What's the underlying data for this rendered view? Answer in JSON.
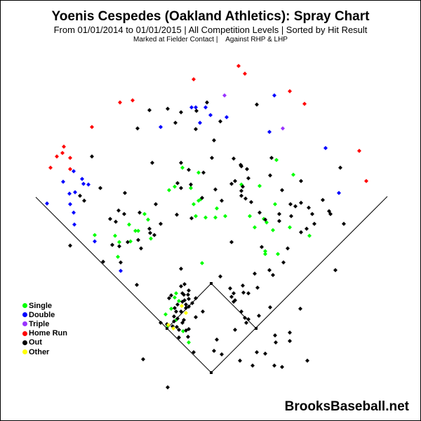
{
  "header": {
    "title": "Yoenis Cespedes (Oakland Athletics): Spray Chart",
    "subtitle": "From 01/01/2014 to 01/01/2015 | All Competition Levels | Sorted by Hit Result",
    "filter_contact": "Marked at Fielder Contact |",
    "filter_hand": "Against RHP & LHP"
  },
  "watermark": "BrooksBaseball.net",
  "chart_data": {
    "type": "scatter",
    "title": "Yoenis Cespedes (Oakland Athletics): Spray Chart",
    "grid": false,
    "legend_placement": "bottom-left",
    "series": [
      {
        "name": "Single",
        "color": "#00ff00",
        "points": [
          [
            -41,
            292
          ],
          [
            -18,
            285
          ],
          [
            -60,
            260
          ],
          [
            -52,
            265
          ],
          [
            -29,
            263
          ],
          [
            -25,
            240
          ],
          [
            -18,
            245
          ],
          [
            -15,
            247
          ],
          [
            -95,
            226
          ],
          [
            -22,
            223
          ],
          [
            -8,
            221
          ],
          [
            93,
            303
          ],
          [
            117,
            282
          ],
          [
            43,
            268
          ],
          [
            69,
            266
          ],
          [
            91,
            240
          ],
          [
            8,
            234
          ],
          [
            20,
            223
          ],
          [
            55,
            223
          ],
          [
            6,
            221
          ],
          [
            -90,
            218
          ],
          [
            -117,
            211
          ],
          [
            -108,
            202
          ],
          [
            -104,
            202
          ],
          [
            -166,
            196
          ],
          [
            -137,
            195
          ],
          [
            -131,
            186
          ],
          [
            -115,
            187
          ],
          [
            -86,
            191
          ],
          [
            -133,
            165
          ],
          [
            -13,
            156
          ],
          [
            -50,
            113
          ],
          [
            -52,
            107
          ],
          [
            -46,
            102
          ],
          [
            -57,
            91
          ],
          [
            -65,
            83
          ],
          [
            -50,
            75
          ],
          [
            -62,
            67
          ],
          [
            -40,
            59
          ],
          [
            -32,
            43
          ],
          [
            75,
            219
          ],
          [
            79,
            214
          ],
          [
            62,
            207
          ],
          [
            88,
            203
          ],
          [
            112,
            207
          ],
          [
            140,
            195
          ],
          [
            77,
            173
          ],
          [
            77,
            169
          ],
          [
            95,
            169
          ]
        ]
      },
      {
        "name": "Double",
        "color": "#0000ff",
        "points": [
          [
            -28,
            378
          ],
          [
            -22,
            378
          ],
          [
            -8,
            378
          ],
          [
            -1,
            367
          ],
          [
            -16,
            356
          ],
          [
            -72,
            350
          ],
          [
            -196,
            287
          ],
          [
            -184,
            276
          ],
          [
            -211,
            272
          ],
          [
            -182,
            269
          ],
          [
            -175,
            268
          ],
          [
            -202,
            255
          ],
          [
            -194,
            257
          ],
          [
            -234,
            241
          ],
          [
            -201,
            240
          ],
          [
            -196,
            228
          ],
          [
            -195,
            211
          ],
          [
            -166,
            187
          ],
          [
            -129,
            145
          ],
          [
            90,
            395
          ],
          [
            22,
            364
          ],
          [
            83,
            343
          ],
          [
            163,
            320
          ],
          [
            182,
            256
          ]
        ]
      },
      {
        "name": "Triple",
        "color": "#9933ff",
        "points": [
          [
            19,
            395
          ],
          [
            102,
            348
          ]
        ]
      },
      {
        "name": "Home Run",
        "color": "#ff0000",
        "points": [
          [
            -25,
            418
          ],
          [
            -130,
            385
          ],
          [
            -112,
            388
          ],
          [
            -170,
            350
          ],
          [
            -210,
            322
          ],
          [
            -212,
            313
          ],
          [
            -220,
            308
          ],
          [
            -201,
            306
          ],
          [
            -229,
            292
          ],
          [
            -201,
            290
          ],
          [
            39,
            437
          ],
          [
            48,
            426
          ],
          [
            112,
            401
          ],
          [
            133,
            383
          ],
          [
            211,
            316
          ],
          [
            221,
            273
          ]
        ]
      },
      {
        "name": "Out",
        "color": "#000000",
        "points": [
          [
            -6,
            385
          ],
          [
            -88,
            374
          ],
          [
            -62,
            376
          ],
          [
            -43,
            371
          ],
          [
            -21,
            373
          ],
          [
            -51,
            356
          ],
          [
            -22,
            347
          ],
          [
            -105,
            348
          ],
          [
            -170,
            308
          ],
          [
            -84,
            299
          ],
          [
            -43,
            299
          ],
          [
            -32,
            289
          ],
          [
            -11,
            285
          ],
          [
            -48,
            270
          ],
          [
            -29,
            268
          ],
          [
            -43,
            263
          ],
          [
            -158,
            263
          ],
          [
            -187,
            252
          ],
          [
            -181,
            245
          ],
          [
            -123,
            256
          ],
          [
            -79,
            240
          ],
          [
            -13,
            249
          ],
          [
            -132,
            231
          ],
          [
            -124,
            226
          ],
          [
            -102,
            228
          ],
          [
            -49,
            225
          ],
          [
            65,
            382
          ],
          [
            13,
            358
          ],
          [
            4,
            331
          ],
          [
            1,
            306
          ],
          [
            32,
            305
          ],
          [
            86,
            306
          ],
          [
            42,
            296
          ],
          [
            43,
            294
          ],
          [
            51,
            290
          ],
          [
            53,
            277
          ],
          [
            84,
            281
          ],
          [
            128,
            273
          ],
          [
            184,
            292
          ],
          [
            29,
            269
          ],
          [
            34,
            273
          ],
          [
            45,
            265
          ],
          [
            6,
            261
          ],
          [
            43,
            259
          ],
          [
            101,
            260
          ],
          [
            43,
            252
          ],
          [
            49,
            248
          ],
          [
            57,
            243
          ],
          [
            15,
            245
          ],
          [
            159,
            246
          ],
          [
            113,
            240
          ],
          [
            120,
            237
          ],
          [
            128,
            242
          ],
          [
            139,
            235
          ],
          [
            168,
            230
          ],
          [
            170,
            226
          ],
          [
            69,
            228
          ],
          [
            97,
            226
          ],
          [
            114,
            223
          ],
          [
            144,
            226
          ],
          [
            -144,
            219
          ],
          [
            -136,
            215
          ],
          [
            -72,
            212
          ],
          [
            -28,
            220
          ],
          [
            -88,
            205
          ],
          [
            -87,
            199
          ],
          [
            -81,
            196
          ],
          [
            -104,
            189
          ],
          [
            -119,
            186
          ],
          [
            -141,
            182
          ],
          [
            -131,
            180
          ],
          [
            -100,
            177
          ],
          [
            -201,
            181
          ],
          [
            -154,
            158
          ],
          [
            -129,
            157
          ],
          [
            -43,
            148
          ],
          [
            -106,
            125
          ],
          [
            -12,
            87
          ],
          [
            -22,
            79
          ],
          [
            -72,
            71
          ],
          [
            -25,
            29
          ],
          [
            -97,
            19
          ],
          [
            -62,
            -21
          ],
          [
            -43,
            123
          ],
          [
            -38,
            126
          ],
          [
            -32,
            117
          ],
          [
            -41,
            113
          ],
          [
            -39,
            111
          ],
          [
            -33,
            111
          ],
          [
            -57,
            110
          ],
          [
            -60,
            106
          ],
          [
            -32,
            105
          ],
          [
            -38,
            103
          ],
          [
            -41,
            101
          ],
          [
            -27,
            99
          ],
          [
            -22,
            106
          ],
          [
            -48,
            97
          ],
          [
            -36,
            97
          ],
          [
            -32,
            94
          ],
          [
            -52,
            92
          ],
          [
            -43,
            87
          ],
          [
            -50,
            87
          ],
          [
            -36,
            92
          ],
          [
            -53,
            80
          ],
          [
            -48,
            77
          ],
          [
            -53,
            73
          ],
          [
            -39,
            75
          ],
          [
            -41,
            71
          ],
          [
            -63,
            69
          ],
          [
            -55,
            66
          ],
          [
            -49,
            65
          ],
          [
            -46,
            61
          ],
          [
            -36,
            60
          ],
          [
            -32,
            62
          ],
          [
            -46,
            50
          ],
          [
            -33,
            51
          ],
          [
            77,
            218
          ],
          [
            97,
            216
          ],
          [
            147,
            212
          ],
          [
            136,
            205
          ],
          [
            128,
            200
          ],
          [
            189,
            212
          ],
          [
            29,
            186
          ],
          [
            72,
            179
          ],
          [
            109,
            177
          ],
          [
            103,
            157
          ],
          [
            83,
            146
          ],
          [
            88,
            139
          ],
          [
            62,
            141
          ],
          [
            13,
            137
          ],
          [
            177,
            146
          ],
          [
            27,
            120
          ],
          [
            45,
            124
          ],
          [
            66,
            121
          ],
          [
            32,
            113
          ],
          [
            46,
            114
          ],
          [
            53,
            113
          ],
          [
            29,
            108
          ],
          [
            34,
            103
          ],
          [
            32,
            101
          ],
          [
            84,
            93
          ],
          [
            127,
            91
          ],
          [
            43,
            87
          ],
          [
            48,
            78
          ],
          [
            53,
            76
          ],
          [
            50,
            71
          ],
          [
            68,
            81
          ],
          [
            34,
            61
          ],
          [
            8,
            47
          ],
          [
            4,
            31
          ],
          [
            15,
            26
          ],
          [
            91,
            53
          ],
          [
            112,
            57
          ],
          [
            92,
            43
          ],
          [
            112,
            45
          ],
          [
            65,
            29
          ],
          [
            77,
            27
          ],
          [
            41,
            17
          ],
          [
            59,
            10
          ],
          [
            90,
            10
          ],
          [
            101,
            8
          ],
          [
            137,
            17
          ]
        ]
      },
      {
        "name": "Other",
        "color": "#ffff00",
        "points": [
          [
            -42,
            95
          ],
          [
            -36,
            85
          ],
          [
            -61,
            68
          ],
          [
            -54,
            63
          ]
        ]
      }
    ]
  }
}
